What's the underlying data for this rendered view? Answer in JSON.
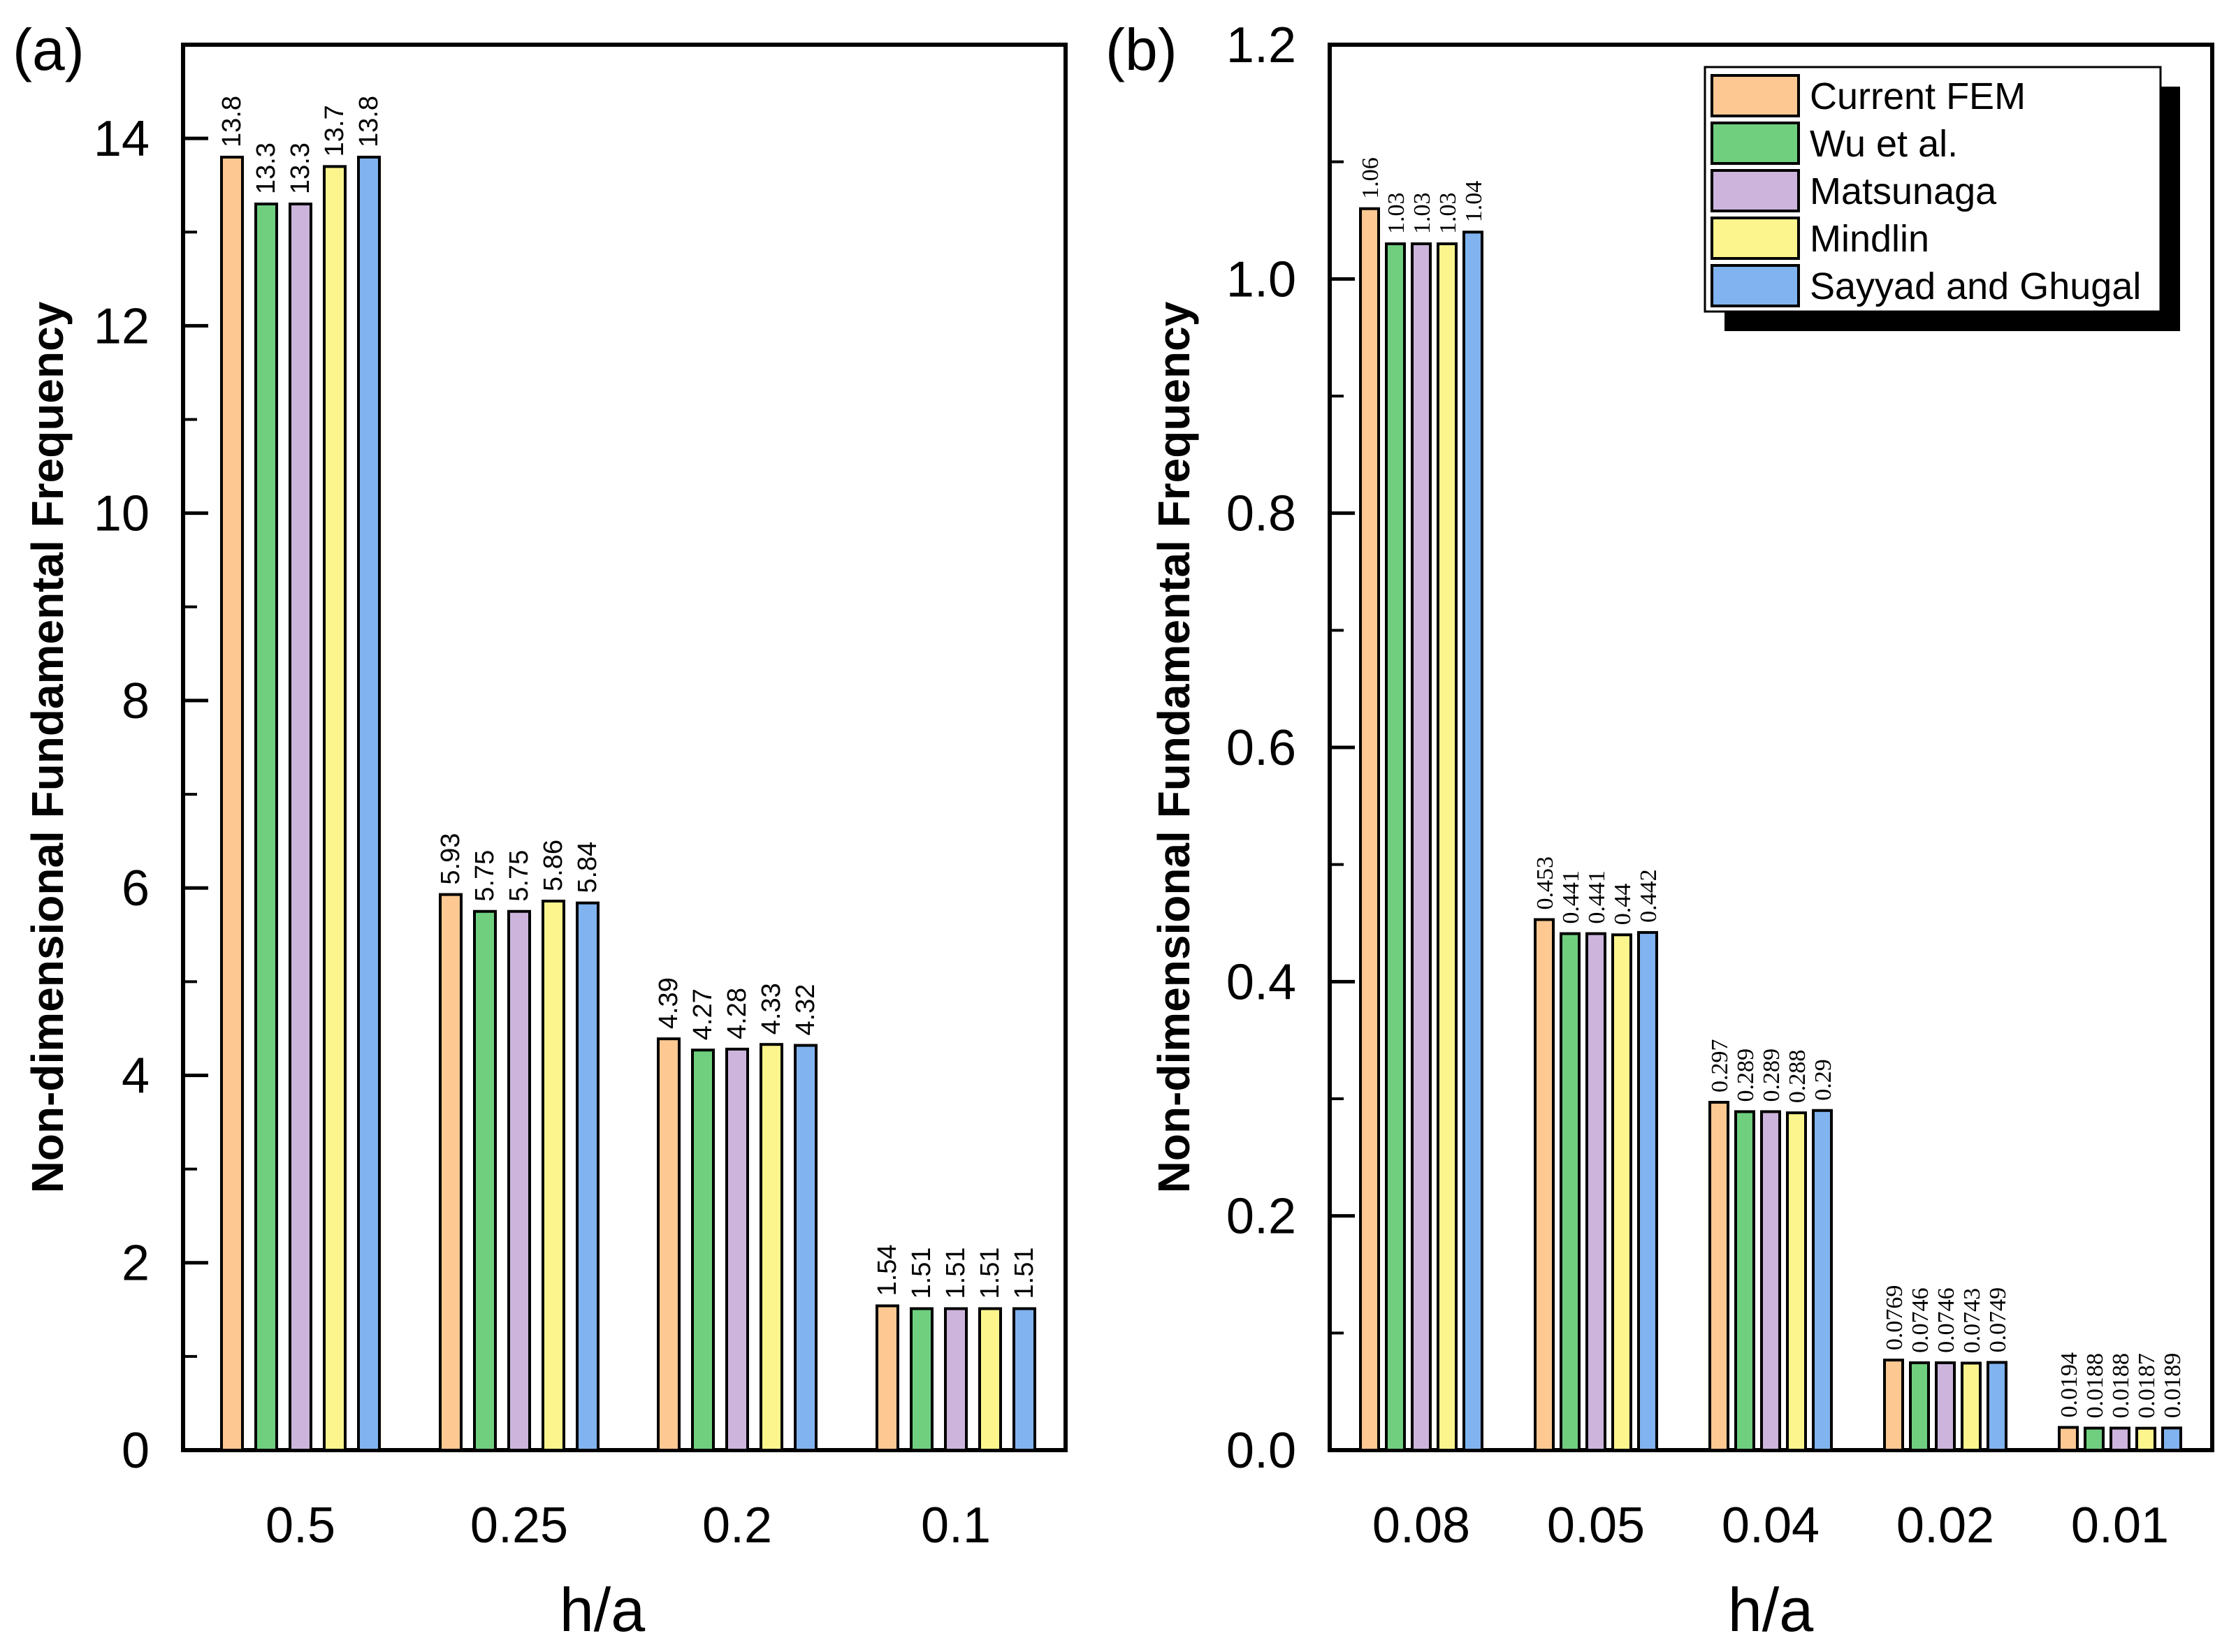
{
  "chart_data": [
    {
      "type": "bar",
      "panel_label": "(a)",
      "xlabel": "h/a",
      "ylabel": "Non-dimensional Fundamental Frequency",
      "ylim": [
        0,
        15
      ],
      "yticks": [
        0,
        2,
        4,
        6,
        8,
        10,
        12,
        14
      ],
      "ytick_labels": [
        "0",
        "2",
        "4",
        "6",
        "8",
        "10",
        "12",
        "14"
      ],
      "categories": [
        "0.5",
        "0.25",
        "0.2",
        "0.1"
      ],
      "series": [
        {
          "name": "Current FEM",
          "color": "#fdc892",
          "values": [
            13.8,
            5.93,
            4.39,
            1.54
          ],
          "labels": [
            "13.8",
            "5.93",
            "4.39",
            "1.54"
          ]
        },
        {
          "name": "Wu et al.",
          "color": "#6fcf7f",
          "values": [
            13.3,
            5.75,
            4.27,
            1.51
          ],
          "labels": [
            "13.3",
            "5.75",
            "4.27",
            "1.51"
          ]
        },
        {
          "name": "Matsunaga",
          "color": "#cdb4dc",
          "values": [
            13.3,
            5.75,
            4.28,
            1.51
          ],
          "labels": [
            "13.3",
            "5.75",
            "4.28",
            "1.51"
          ]
        },
        {
          "name": "Mindlin",
          "color": "#fcf58e",
          "values": [
            13.7,
            5.86,
            4.33,
            1.51
          ],
          "labels": [
            "13.7",
            "5.86",
            "4.33",
            "1.51"
          ]
        },
        {
          "name": "Sayyad and Ghugal",
          "color": "#80b3ef",
          "values": [
            13.8,
            5.84,
            4.32,
            1.51
          ],
          "labels": [
            "13.8",
            "5.84",
            "4.32",
            "1.51"
          ]
        }
      ],
      "grid": false
    },
    {
      "type": "bar",
      "panel_label": "(b)",
      "xlabel": "h/a",
      "ylabel": "Non-dimensional Fundamental Frequency",
      "ylim": [
        0,
        1.2
      ],
      "yticks": [
        0,
        0.2,
        0.4,
        0.6,
        0.8,
        1.0,
        1.2
      ],
      "ytick_labels": [
        "0.0",
        "0.2",
        "0.4",
        "0.6",
        "0.8",
        "1.0",
        "1.2"
      ],
      "categories": [
        "0.08",
        "0.05",
        "0.04",
        "0.02",
        "0.01"
      ],
      "series": [
        {
          "name": "Current FEM",
          "color": "#fdc892",
          "values": [
            1.06,
            0.453,
            0.297,
            0.0769,
            0.0194
          ],
          "labels": [
            "1.06",
            "0.453",
            "0.297",
            "0.0769",
            "0.0194"
          ]
        },
        {
          "name": "Wu et al.",
          "color": "#6fcf7f",
          "values": [
            1.03,
            0.441,
            0.289,
            0.0746,
            0.0188
          ],
          "labels": [
            "1.03",
            "0.441",
            "0.289",
            "0.0746",
            "0.0188"
          ]
        },
        {
          "name": "Matsunaga",
          "color": "#cdb4dc",
          "values": [
            1.03,
            0.441,
            0.289,
            0.0746,
            0.0188
          ],
          "labels": [
            "1.03",
            "0.441",
            "0.289",
            "0.0746",
            "0.0188"
          ]
        },
        {
          "name": "Mindlin",
          "color": "#fcf58e",
          "values": [
            1.03,
            0.44,
            0.288,
            0.0743,
            0.0187
          ],
          "labels": [
            "1.03",
            "0.44",
            "0.288",
            "0.0743",
            "0.0187"
          ]
        },
        {
          "name": "Sayyad and Ghugal",
          "color": "#80b3ef",
          "values": [
            1.04,
            0.442,
            0.29,
            0.0749,
            0.0189
          ],
          "labels": [
            "1.04",
            "0.442",
            "0.29",
            "0.0749",
            "0.0189"
          ]
        }
      ],
      "legend": {
        "position": "top-right",
        "entries": [
          "Current FEM",
          "Wu et al.",
          "Matsunaga",
          "Mindlin",
          "Sayyad and Ghugal"
        ]
      },
      "grid": false
    }
  ]
}
